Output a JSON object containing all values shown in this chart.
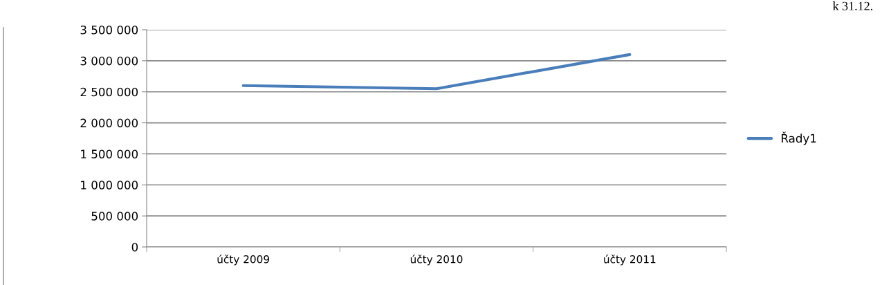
{
  "chart_data": {
    "type": "line",
    "categories": [
      "účty 2009",
      "účty 2010",
      "účty 2011"
    ],
    "series": [
      {
        "name": "Řady1",
        "color": "#4a7ebb",
        "values": [
          2600000,
          2550000,
          3100000
        ]
      }
    ],
    "ylim": [
      0,
      3500000
    ],
    "yticks": [
      {
        "value": 0,
        "label": "0"
      },
      {
        "value": 500000,
        "label": "500 000"
      },
      {
        "value": 1000000,
        "label": "1 000 000"
      },
      {
        "value": 1500000,
        "label": "1 500 000"
      },
      {
        "value": 2000000,
        "label": "2 000 000"
      },
      {
        "value": 2500000,
        "label": "2 500 000"
      },
      {
        "value": 3000000,
        "label": "3 000 000"
      },
      {
        "value": 3500000,
        "label": "3 500 000"
      }
    ],
    "grid": "y",
    "legend": "right",
    "marker": "none",
    "line_style": "solid",
    "annotations": [
      "k 31.12."
    ]
  }
}
